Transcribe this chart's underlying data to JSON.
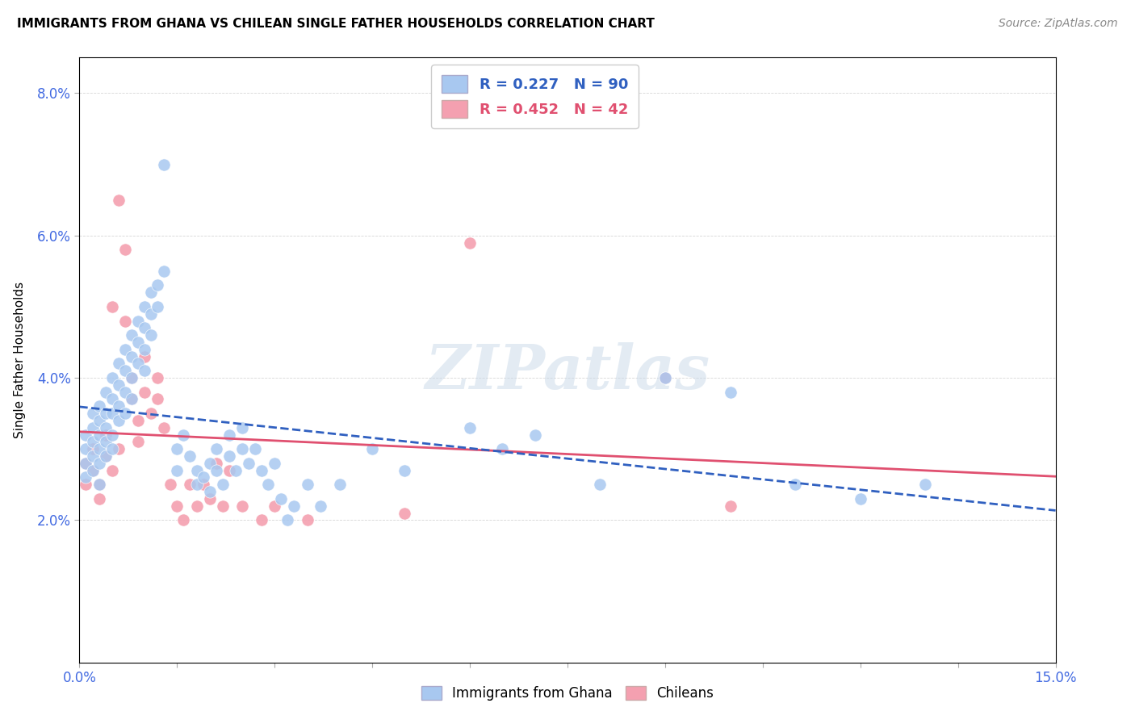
{
  "title": "IMMIGRANTS FROM GHANA VS CHILEAN SINGLE FATHER HOUSEHOLDS CORRELATION CHART",
  "source": "Source: ZipAtlas.com",
  "ylabel": "Single Father Households",
  "legend_blue": {
    "R": 0.227,
    "N": 90,
    "label": "Immigrants from Ghana"
  },
  "legend_pink": {
    "R": 0.452,
    "N": 42,
    "label": "Chileans"
  },
  "blue_color": "#a8c8f0",
  "pink_color": "#f4a0b0",
  "blue_line_color": "#3060c0",
  "pink_line_color": "#e05070",
  "blue_scatter": [
    [
      0.001,
      0.03
    ],
    [
      0.001,
      0.028
    ],
    [
      0.001,
      0.032
    ],
    [
      0.001,
      0.026
    ],
    [
      0.002,
      0.031
    ],
    [
      0.002,
      0.029
    ],
    [
      0.002,
      0.033
    ],
    [
      0.002,
      0.027
    ],
    [
      0.002,
      0.035
    ],
    [
      0.003,
      0.03
    ],
    [
      0.003,
      0.028
    ],
    [
      0.003,
      0.032
    ],
    [
      0.003,
      0.036
    ],
    [
      0.003,
      0.034
    ],
    [
      0.003,
      0.025
    ],
    [
      0.004,
      0.038
    ],
    [
      0.004,
      0.035
    ],
    [
      0.004,
      0.033
    ],
    [
      0.004,
      0.031
    ],
    [
      0.004,
      0.029
    ],
    [
      0.005,
      0.04
    ],
    [
      0.005,
      0.037
    ],
    [
      0.005,
      0.035
    ],
    [
      0.005,
      0.032
    ],
    [
      0.005,
      0.03
    ],
    [
      0.006,
      0.042
    ],
    [
      0.006,
      0.039
    ],
    [
      0.006,
      0.036
    ],
    [
      0.006,
      0.034
    ],
    [
      0.007,
      0.044
    ],
    [
      0.007,
      0.041
    ],
    [
      0.007,
      0.038
    ],
    [
      0.007,
      0.035
    ],
    [
      0.008,
      0.046
    ],
    [
      0.008,
      0.043
    ],
    [
      0.008,
      0.04
    ],
    [
      0.008,
      0.037
    ],
    [
      0.009,
      0.048
    ],
    [
      0.009,
      0.045
    ],
    [
      0.009,
      0.042
    ],
    [
      0.01,
      0.05
    ],
    [
      0.01,
      0.047
    ],
    [
      0.01,
      0.044
    ],
    [
      0.01,
      0.041
    ],
    [
      0.011,
      0.052
    ],
    [
      0.011,
      0.049
    ],
    [
      0.011,
      0.046
    ],
    [
      0.012,
      0.053
    ],
    [
      0.012,
      0.05
    ],
    [
      0.013,
      0.055
    ],
    [
      0.013,
      0.07
    ],
    [
      0.015,
      0.03
    ],
    [
      0.015,
      0.027
    ],
    [
      0.016,
      0.032
    ],
    [
      0.017,
      0.029
    ],
    [
      0.018,
      0.027
    ],
    [
      0.018,
      0.025
    ],
    [
      0.019,
      0.026
    ],
    [
      0.02,
      0.028
    ],
    [
      0.02,
      0.024
    ],
    [
      0.021,
      0.03
    ],
    [
      0.021,
      0.027
    ],
    [
      0.022,
      0.025
    ],
    [
      0.023,
      0.032
    ],
    [
      0.023,
      0.029
    ],
    [
      0.024,
      0.027
    ],
    [
      0.025,
      0.033
    ],
    [
      0.025,
      0.03
    ],
    [
      0.026,
      0.028
    ],
    [
      0.027,
      0.03
    ],
    [
      0.028,
      0.027
    ],
    [
      0.029,
      0.025
    ],
    [
      0.03,
      0.028
    ],
    [
      0.031,
      0.023
    ],
    [
      0.032,
      0.02
    ],
    [
      0.033,
      0.022
    ],
    [
      0.035,
      0.025
    ],
    [
      0.037,
      0.022
    ],
    [
      0.04,
      0.025
    ],
    [
      0.045,
      0.03
    ],
    [
      0.05,
      0.027
    ],
    [
      0.06,
      0.033
    ],
    [
      0.065,
      0.03
    ],
    [
      0.07,
      0.032
    ],
    [
      0.08,
      0.025
    ],
    [
      0.09,
      0.04
    ],
    [
      0.1,
      0.038
    ],
    [
      0.11,
      0.025
    ],
    [
      0.12,
      0.023
    ],
    [
      0.13,
      0.025
    ]
  ],
  "pink_scatter": [
    [
      0.001,
      0.028
    ],
    [
      0.001,
      0.025
    ],
    [
      0.002,
      0.03
    ],
    [
      0.002,
      0.027
    ],
    [
      0.003,
      0.025
    ],
    [
      0.003,
      0.023
    ],
    [
      0.004,
      0.032
    ],
    [
      0.004,
      0.029
    ],
    [
      0.005,
      0.05
    ],
    [
      0.005,
      0.027
    ],
    [
      0.006,
      0.065
    ],
    [
      0.006,
      0.03
    ],
    [
      0.007,
      0.058
    ],
    [
      0.007,
      0.048
    ],
    [
      0.008,
      0.04
    ],
    [
      0.008,
      0.037
    ],
    [
      0.009,
      0.034
    ],
    [
      0.009,
      0.031
    ],
    [
      0.01,
      0.038
    ],
    [
      0.01,
      0.043
    ],
    [
      0.011,
      0.035
    ],
    [
      0.012,
      0.04
    ],
    [
      0.012,
      0.037
    ],
    [
      0.013,
      0.033
    ],
    [
      0.014,
      0.025
    ],
    [
      0.015,
      0.022
    ],
    [
      0.016,
      0.02
    ],
    [
      0.017,
      0.025
    ],
    [
      0.018,
      0.022
    ],
    [
      0.019,
      0.025
    ],
    [
      0.02,
      0.023
    ],
    [
      0.021,
      0.028
    ],
    [
      0.022,
      0.022
    ],
    [
      0.023,
      0.027
    ],
    [
      0.025,
      0.022
    ],
    [
      0.028,
      0.02
    ],
    [
      0.03,
      0.022
    ],
    [
      0.035,
      0.02
    ],
    [
      0.05,
      0.021
    ],
    [
      0.06,
      0.059
    ],
    [
      0.09,
      0.04
    ],
    [
      0.1,
      0.022
    ]
  ],
  "watermark": "ZIPatlas",
  "xmin": 0.0,
  "xmax": 0.15,
  "ymin": 0.0,
  "ymax": 0.085,
  "xticks_minor": [
    0.0,
    0.015,
    0.03,
    0.045,
    0.06,
    0.075,
    0.09,
    0.105,
    0.12,
    0.135,
    0.15
  ],
  "yticks": [
    0.02,
    0.04,
    0.06,
    0.08
  ]
}
